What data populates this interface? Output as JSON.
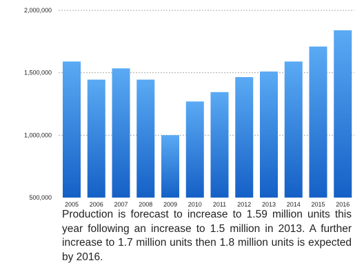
{
  "chart_data": {
    "type": "bar",
    "categories": [
      "2005",
      "2006",
      "2007",
      "2008",
      "2009",
      "2010",
      "2011",
      "2012",
      "2013",
      "2014",
      "2015",
      "2016"
    ],
    "values": [
      1590000,
      1445000,
      1535000,
      1445000,
      1000000,
      1270000,
      1345000,
      1465000,
      1510000,
      1590000,
      1710000,
      1840000
    ],
    "ylim": [
      500000,
      2000000
    ],
    "yticks": [
      {
        "value": 2000000,
        "label": "2,000,000"
      },
      {
        "value": 1500000,
        "label": "1,500,000"
      },
      {
        "value": 1000000,
        "label": "1,000,000"
      },
      {
        "value": 500000,
        "label": "500,000"
      }
    ],
    "grid": true,
    "grid_style": "dotted",
    "colors": {
      "bar_top": "#5aaaf4",
      "bar_bottom": "#1560c6",
      "grid": "#aaaaaa"
    }
  },
  "caption": "Production is forecast to increase to 1.59 million units this year following an increase to 1.5 million in 2013. A further increase to 1.7 million units then 1.8 million units is expected by 2016."
}
